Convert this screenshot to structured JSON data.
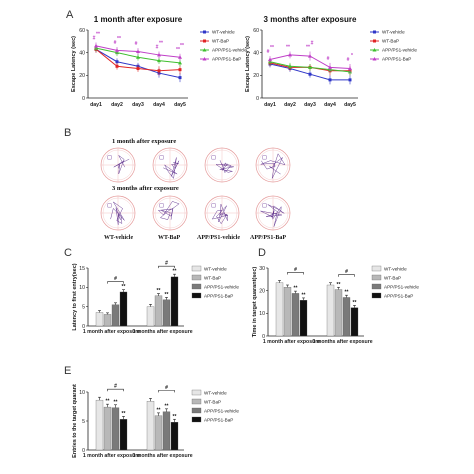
{
  "panels": {
    "a": "A",
    "b": "B",
    "c": "C",
    "d": "D",
    "e": "E"
  },
  "colors": {
    "wt_vehicle": "#2f36c8",
    "wt_bap": "#e02424",
    "app_vehicle": "#3fbf2f",
    "app_bap": "#c040c8",
    "bar_wt_vehicle": "#e6e6e6",
    "bar_wt_bap": "#b8b8b8",
    "bar_app_vehicle": "#7a7a7a",
    "bar_app_bap": "#111111"
  },
  "panel_b": {
    "row1": "1 month after exposure",
    "row2": "3 months after exposure",
    "groups": [
      "WT-vehicle",
      "WT-BaP",
      "APP/PS1-vehicle",
      "APP/PS1-BaP"
    ]
  },
  "chart_data": [
    {
      "id": "A1",
      "type": "line",
      "title": "1 month after exposure",
      "ylabel": "Escape Latency (sec)",
      "x": [
        "day1",
        "day2",
        "day3",
        "day4",
        "day5"
      ],
      "ylim": [
        0,
        60
      ],
      "yticks": [
        0,
        20,
        40,
        60
      ],
      "legend_position": "right",
      "series": [
        {
          "name": "WT-vehicle",
          "values": [
            43,
            32,
            28,
            22,
            18
          ],
          "err": [
            3,
            3,
            3,
            4,
            4
          ]
        },
        {
          "name": "WT-BaP",
          "values": [
            43,
            28,
            26,
            24,
            25
          ],
          "err": [
            3,
            3,
            3,
            4,
            4
          ]
        },
        {
          "name": "APP/PS1-vehicle",
          "values": [
            44,
            40,
            36,
            33,
            31
          ],
          "err": [
            3,
            3,
            3,
            3,
            3
          ]
        },
        {
          "name": "APP/PS1-BaP",
          "values": [
            46,
            42,
            41,
            38,
            36
          ],
          "err": [
            3,
            3,
            3,
            3,
            3
          ]
        }
      ],
      "annotations": [
        "#",
        "#",
        "#",
        "#",
        "**",
        "**",
        "**",
        "**",
        "**"
      ]
    },
    {
      "id": "A2",
      "type": "line",
      "title": "3 months after exposure",
      "ylabel": "Escape Latency (sec)",
      "x": [
        "day1",
        "day2",
        "day3",
        "day4",
        "day5"
      ],
      "ylim": [
        0,
        60
      ],
      "yticks": [
        0,
        20,
        40,
        60
      ],
      "legend_position": "right",
      "series": [
        {
          "name": "WT-vehicle",
          "values": [
            30,
            26,
            21,
            16,
            16
          ],
          "err": [
            3,
            3,
            3,
            4,
            4
          ]
        },
        {
          "name": "WT-BaP",
          "values": [
            31,
            27,
            27,
            24,
            24
          ],
          "err": [
            3,
            3,
            3,
            4,
            4
          ]
        },
        {
          "name": "APP/PS1-vehicle",
          "values": [
            32,
            28,
            27,
            25,
            23
          ],
          "err": [
            3,
            3,
            3,
            3,
            3
          ]
        },
        {
          "name": "APP/PS1-BaP",
          "values": [
            34,
            38,
            37,
            27,
            26
          ],
          "err": [
            3,
            3,
            4,
            4,
            4
          ]
        }
      ],
      "annotations": [
        "#",
        "**",
        "**",
        "#",
        "#",
        "**",
        "#",
        "*"
      ]
    },
    {
      "id": "C",
      "type": "bar",
      "ylabel": "Latency to first entry(sec)",
      "categories": [
        "1 month after exposure",
        "3 months after exposure"
      ],
      "ylim": [
        0,
        15
      ],
      "yticks": [
        0,
        5,
        10,
        15
      ],
      "legend_position": "top-right",
      "series": [
        {
          "name": "WT-vehicle",
          "values": [
            3.5,
            5.0
          ],
          "err": [
            0.5,
            0.6
          ]
        },
        {
          "name": "WT-BaP",
          "values": [
            3.0,
            7.8
          ],
          "err": [
            0.4,
            0.6
          ]
        },
        {
          "name": "APP/PS1-vehicle",
          "values": [
            5.5,
            6.8
          ],
          "err": [
            0.5,
            0.6
          ]
        },
        {
          "name": "APP/PS1-BaP",
          "values": [
            8.8,
            12.7
          ],
          "err": [
            0.6,
            0.7
          ]
        }
      ],
      "stars": [
        [
          "",
          "",
          "",
          "**"
        ],
        [
          "",
          "**",
          "**",
          "**"
        ]
      ],
      "brackets": [
        "#",
        "#"
      ]
    },
    {
      "id": "D",
      "type": "bar",
      "ylabel": "Time in target quarant(sec)",
      "categories": [
        "1 month after exposure",
        "3 months after exposure"
      ],
      "ylim": [
        0,
        30
      ],
      "yticks": [
        0,
        10,
        20,
        30
      ],
      "legend_position": "top-right",
      "series": [
        {
          "name": "WT-vehicle",
          "values": [
            23.5,
            22.5
          ],
          "err": [
            1,
            1
          ]
        },
        {
          "name": "WT-BaP",
          "values": [
            21.5,
            20.5
          ],
          "err": [
            1,
            1
          ]
        },
        {
          "name": "APP/PS1-vehicle",
          "values": [
            18.8,
            17.0
          ],
          "err": [
            1,
            1
          ]
        },
        {
          "name": "APP/PS1-BaP",
          "values": [
            15.8,
            12.5
          ],
          "err": [
            1,
            1
          ]
        }
      ],
      "stars": [
        [
          "",
          "",
          "**",
          "**"
        ],
        [
          "",
          "**",
          "**",
          "**"
        ]
      ],
      "brackets": [
        "#",
        "#"
      ]
    },
    {
      "id": "E",
      "type": "bar",
      "ylabel": "Entries to the target quarant",
      "categories": [
        "1 month after exposure",
        "3 months after exposure"
      ],
      "ylim": [
        0,
        10
      ],
      "yticks": [
        0,
        5,
        10
      ],
      "legend_position": "top-right",
      "series": [
        {
          "name": "WT-vehicle",
          "values": [
            8.6,
            8.4
          ],
          "err": [
            0.5,
            0.5
          ]
        },
        {
          "name": "WT-BaP",
          "values": [
            7.4,
            5.9
          ],
          "err": [
            0.5,
            0.5
          ]
        },
        {
          "name": "APP/PS1-vehicle",
          "values": [
            7.3,
            6.6
          ],
          "err": [
            0.5,
            0.5
          ]
        },
        {
          "name": "APP/PS1-BaP",
          "values": [
            5.3,
            4.8
          ],
          "err": [
            0.5,
            0.5
          ]
        }
      ],
      "stars": [
        [
          "",
          "**",
          "**",
          "**"
        ],
        [
          "",
          "**",
          "**",
          "**"
        ]
      ],
      "brackets": [
        "#",
        "#"
      ]
    }
  ]
}
